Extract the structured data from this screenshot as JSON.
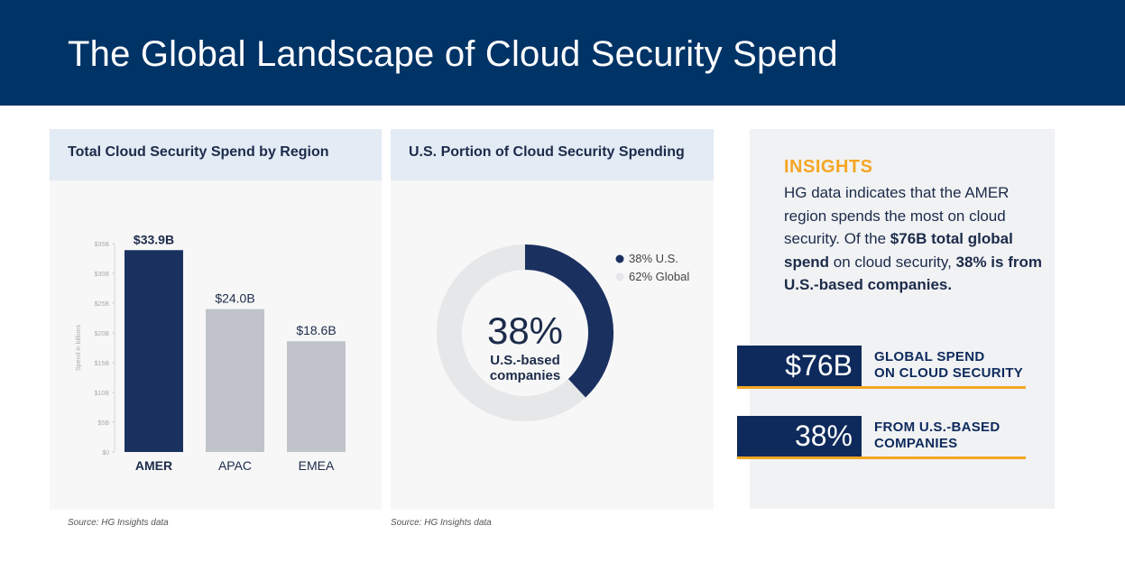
{
  "header": {
    "title": "The Global Landscape of Cloud Security Spend"
  },
  "colors": {
    "header_bg": "#003366",
    "amer": "#1a3160",
    "other": "#c0c3c9",
    "accent": "#f5a623",
    "donut_us": "#1a3160",
    "donut_global": "#e6e7e9"
  },
  "chart_data": [
    {
      "type": "bar",
      "title": "Total Cloud Security Spend by Region",
      "categories": [
        "AMER",
        "APAC",
        "EMEA"
      ],
      "values": [
        33.9,
        24.0,
        18.6
      ],
      "data_labels": [
        "$33.9B",
        "$24.0B",
        "$18.6B"
      ],
      "ylabel": "Spend in billions",
      "ylim": [
        0,
        35
      ],
      "yticks": [
        0,
        5,
        10,
        15,
        20,
        25,
        30,
        35
      ],
      "ytick_labels": [
        "$0",
        "$5B",
        "$10B",
        "$15B",
        "$20B",
        "$25B",
        "$30B",
        "$35B"
      ],
      "highlight": "AMER",
      "source": "Source: HG Insights data"
    },
    {
      "type": "pie",
      "variant": "donut",
      "title": "U.S. Portion of Cloud Security Spending",
      "slices": [
        {
          "label": "38% U.S.",
          "value": 38
        },
        {
          "label": "62% Global",
          "value": 62
        }
      ],
      "center_value": "38%",
      "center_label": [
        "U.S.-based",
        "companies"
      ],
      "legend_position": "top-right",
      "source": "Source: HG Insights data"
    }
  ],
  "insights": {
    "heading": "INSIGHTS",
    "text_1": "HG data indicates that the AMER region spends the most on cloud security. Of the ",
    "text_bold_1": "$76B total global spend",
    "text_2": " on cloud security, ",
    "text_bold_2": "38% is from U.S.-based companies."
  },
  "stats": [
    {
      "value": "$76B",
      "label_1": "GLOBAL SPEND",
      "label_2": "ON CLOUD SECURITY"
    },
    {
      "value": "38%",
      "label_1": "FROM U.S.-BASED",
      "label_2": "COMPANIES"
    }
  ]
}
